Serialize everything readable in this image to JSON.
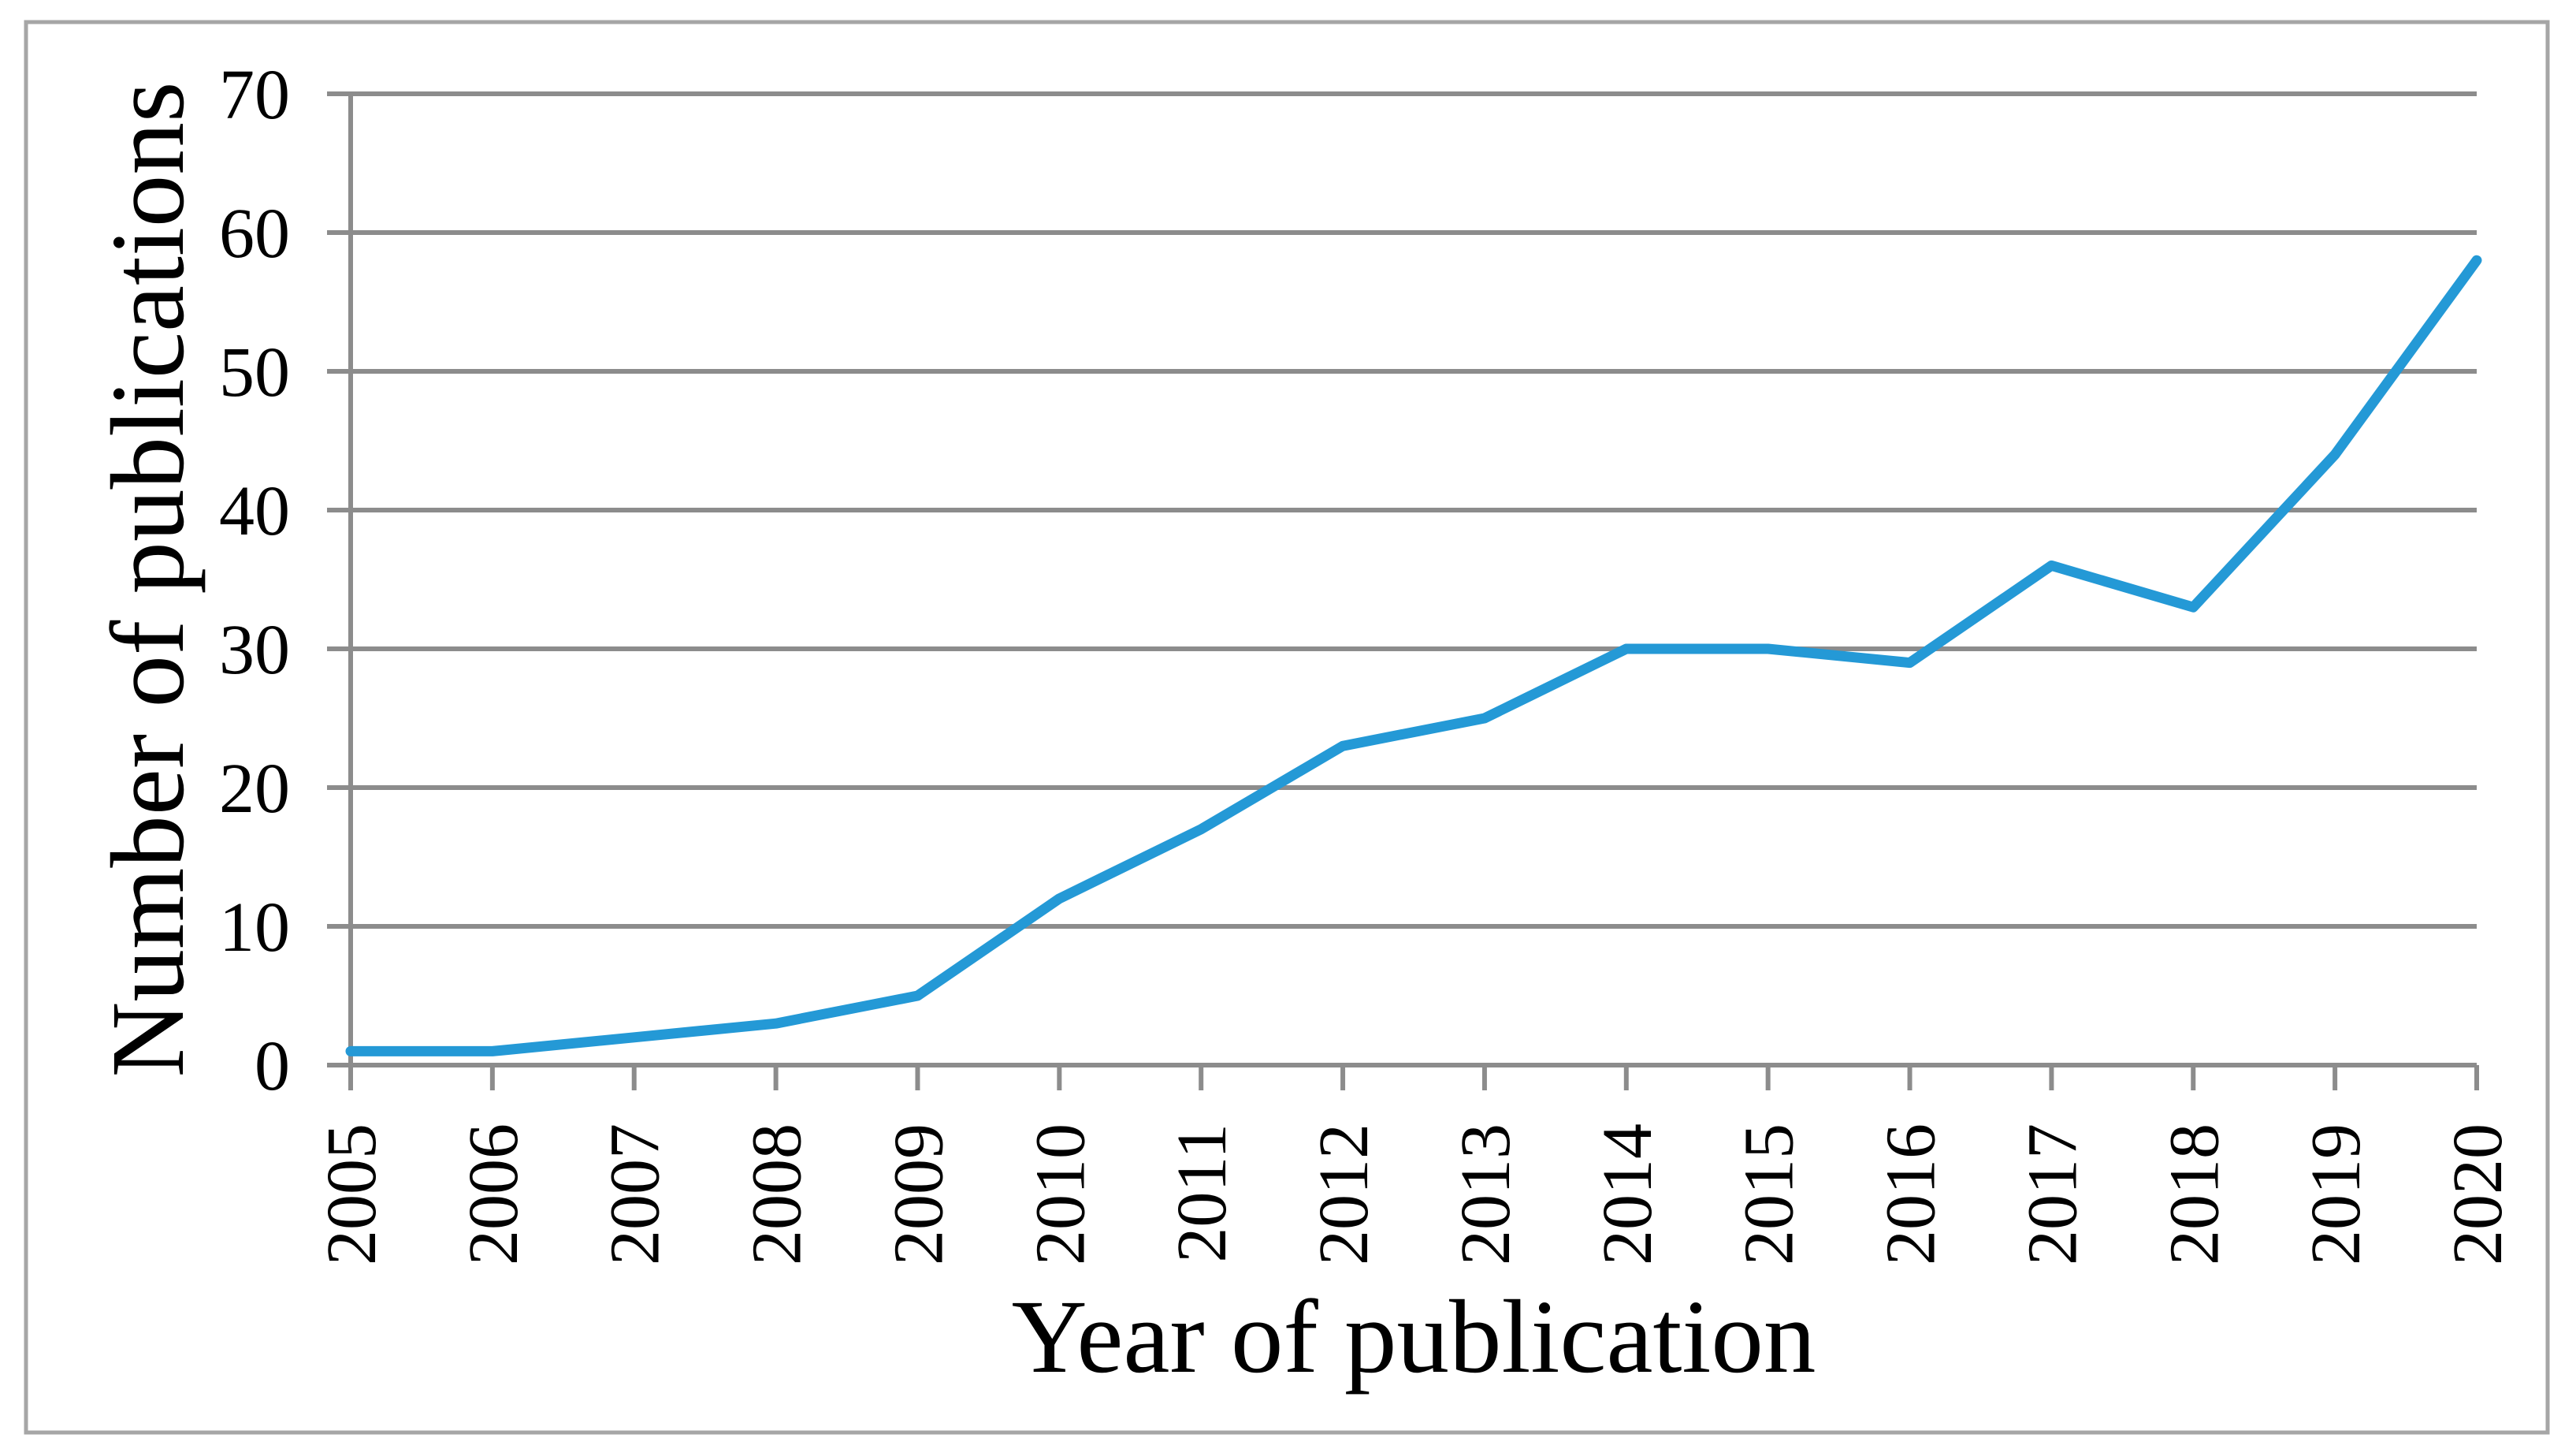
{
  "figure": {
    "background_color": "#ffffff",
    "border_color": "#a6a6a6"
  },
  "chart_data": {
    "type": "line",
    "title": "",
    "xlabel": "Year of publication",
    "ylabel": "Number of publications",
    "categories": [
      "2005",
      "2006",
      "2007",
      "2008",
      "2009",
      "2010",
      "2011",
      "2012",
      "2013",
      "2014",
      "2015",
      "2016",
      "2017",
      "2018",
      "2019",
      "2020"
    ],
    "values": [
      1,
      1,
      2,
      3,
      5,
      12,
      17,
      23,
      25,
      30,
      30,
      29,
      36,
      33,
      44,
      58
    ],
    "ylim": [
      0,
      70
    ],
    "yticks": [
      0,
      10,
      20,
      30,
      40,
      50,
      60,
      70
    ],
    "grid": "horizontal",
    "legend": "none",
    "line_color": "#2499d6",
    "gridline_color": "#8c8c8c",
    "axis_color": "#8c8c8c",
    "text_color": "#000000"
  }
}
